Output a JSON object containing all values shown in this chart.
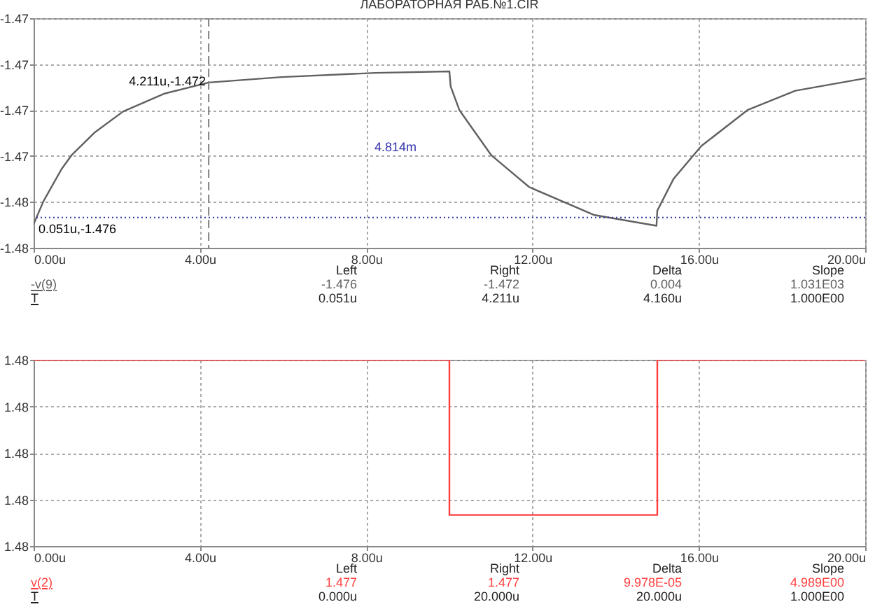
{
  "chart_data": [
    {
      "type": "line",
      "title": "ЛАБОРАТОРНАЯ РАБ.№1.CIR",
      "xlim": [
        0,
        20
      ],
      "xticks": [
        {
          "value": 0,
          "label": "0.00u"
        },
        {
          "value": 4,
          "label": "4.00u"
        },
        {
          "value": 8,
          "label": "8.00u"
        },
        {
          "value": 12,
          "label": "12.00u"
        },
        {
          "value": 16,
          "label": "16.00u"
        },
        {
          "value": 20,
          "label": "20.00u"
        }
      ],
      "ylim": [
        -1.477,
        -1.4694
      ],
      "yticks": [
        {
          "value": -1.477,
          "label": "-1.48"
        },
        {
          "value": -1.47548,
          "label": "-1.48"
        },
        {
          "value": -1.47396,
          "label": "-1.47"
        },
        {
          "value": -1.47244,
          "label": "-1.47"
        },
        {
          "value": -1.47092,
          "label": "-1.47"
        },
        {
          "value": -1.4694,
          "label": "-1.47"
        }
      ],
      "grid": true,
      "marker": "none",
      "line_style": "solid",
      "series": [
        {
          "name": "-v(9)",
          "color": "#606060",
          "x": [
            0,
            0.24,
            0.67,
            0.91,
            1.48,
            2.15,
            3.16,
            4.21,
            5.96,
            8.22,
            10.0,
            10.03,
            10.24,
            11.01,
            11.92,
            13.47,
            14.98,
            15.0,
            15.39,
            16.06,
            17.17,
            18.32,
            20.0
          ],
          "values": [
            -1.47622,
            -1.47545,
            -1.4744,
            -1.47394,
            -1.47317,
            -1.47249,
            -1.47189,
            -1.47153,
            -1.47135,
            -1.47121,
            -1.47116,
            -1.47166,
            -1.47244,
            -1.47394,
            -1.47499,
            -1.47591,
            -1.47627,
            -1.47577,
            -1.47472,
            -1.47363,
            -1.47244,
            -1.4718,
            -1.47139
          ]
        }
      ],
      "ref_lines": [
        {
          "axis": "x",
          "value": 4.211,
          "color": "#808080",
          "line_style": "dashed"
        },
        {
          "axis": "y",
          "value": -1.476,
          "color": "#3333aa",
          "line_style": "dotted"
        }
      ],
      "annotations": [
        {
          "text": "4.211u,-1.472",
          "x": 4.211,
          "y": -1.472
        },
        {
          "text": "0.051u,-1.476",
          "x": 0.051,
          "y": -1.476
        },
        "4.814m",
        "Left",
        "Right",
        "Delta",
        "Slope",
        "-1.476",
        "-1.472",
        "0.004",
        "1.031E03",
        "T",
        "0.051u",
        "4.211u",
        "4.160u",
        "1.000E00"
      ]
    },
    {
      "type": "step",
      "xlim": [
        0,
        20
      ],
      "xticks": [
        {
          "value": 0,
          "label": "0.00u"
        },
        {
          "value": 4,
          "label": "4.00u"
        },
        {
          "value": 8,
          "label": "8.00u"
        },
        {
          "value": 12,
          "label": "12.00u"
        },
        {
          "value": 16,
          "label": "16.00u"
        },
        {
          "value": 20,
          "label": "20.00u"
        }
      ],
      "ylim": [
        1.476,
        1.4772
      ],
      "yticks": [
        {
          "value": 1.476,
          "label": "1.48"
        },
        {
          "value": 1.4763,
          "label": "1.48"
        },
        {
          "value": 1.4766,
          "label": "1.48"
        },
        {
          "value": 1.4769,
          "label": "1.48"
        },
        {
          "value": 1.4772,
          "label": "1.48"
        }
      ],
      "grid": true,
      "marker": "none",
      "line_style": "solid",
      "series": [
        {
          "name": "v(2)",
          "color": "#ff4040",
          "x": [
            0,
            10,
            15,
            20
          ],
          "values": [
            1.4772,
            1.4762,
            1.4772,
            1.4772
          ]
        }
      ],
      "annotations": [
        "Left",
        "Right",
        "Delta",
        "Slope",
        "1.477",
        "1.477",
        "9.978E-05",
        "4.989E00",
        "T",
        "0.000u",
        "20.000u",
        "20.000u",
        "1.000E00"
      ]
    }
  ]
}
